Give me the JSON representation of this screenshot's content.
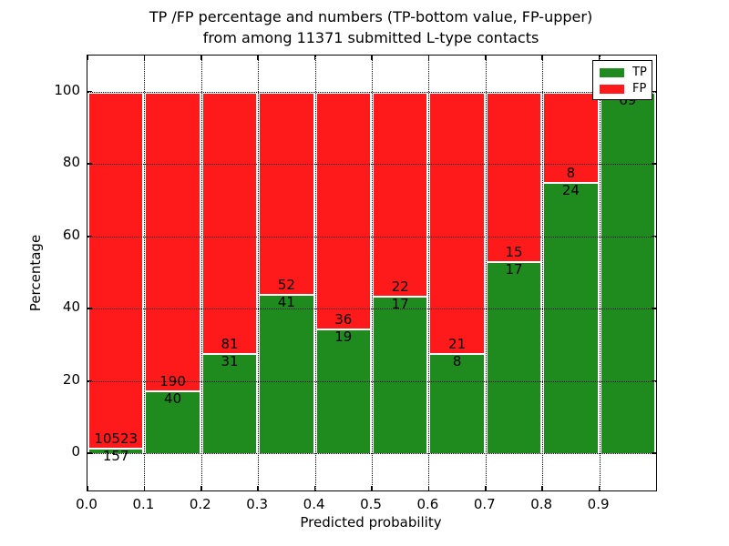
{
  "title": {
    "line1": "TP /FP percentage and numbers (TP-bottom value, FP-upper)",
    "line2": "from among 11371 submitted L-type contacts"
  },
  "axes": {
    "xlabel": "Predicted probability",
    "ylabel": "Percentage",
    "x_ticks": [
      "0.0",
      "0.1",
      "0.2",
      "0.3",
      "0.4",
      "0.5",
      "0.6",
      "0.7",
      "0.8",
      "0.9"
    ],
    "y_ticks": [
      "0",
      "20",
      "40",
      "60",
      "80",
      "100"
    ]
  },
  "legend": {
    "items": [
      {
        "label": "TP",
        "color": "#1f8b1f"
      },
      {
        "label": "FP",
        "color": "#fe1a1a"
      }
    ]
  },
  "colors": {
    "tp": "#1f8b1f",
    "fp": "#fe1a1a",
    "bar_edge": "#ffffff",
    "grid": "#000000",
    "background": "#ffffff"
  },
  "total_submitted": "11371",
  "chart_data": {
    "type": "bar",
    "stacked": true,
    "normalized_to_percent": true,
    "title": "TP /FP percentage and numbers (TP-bottom value, FP-upper) from among 11371 submitted L-type contacts",
    "xlabel": "Predicted probability",
    "ylabel": "Percentage",
    "categories": [
      "0.0-0.1",
      "0.1-0.2",
      "0.2-0.3",
      "0.3-0.4",
      "0.4-0.5",
      "0.5-0.6",
      "0.6-0.7",
      "0.7-0.8",
      "0.8-0.9",
      "0.9-1.0"
    ],
    "series": [
      {
        "name": "TP",
        "color": "#1f8b1f",
        "counts": [
          157,
          40,
          31,
          41,
          19,
          17,
          8,
          17,
          24,
          69
        ],
        "percent": [
          1.47,
          17.39,
          27.68,
          44.09,
          34.55,
          43.59,
          27.59,
          53.13,
          75.0,
          100.0
        ]
      },
      {
        "name": "FP",
        "color": "#fe1a1a",
        "counts": [
          10523,
          190,
          81,
          52,
          36,
          22,
          21,
          15,
          8,
          0
        ],
        "percent": [
          98.53,
          82.61,
          72.32,
          55.91,
          65.45,
          56.41,
          72.41,
          46.87,
          25.0,
          0.0
        ]
      }
    ],
    "xlim": [
      0.0,
      1.0
    ],
    "ylim": [
      -10.5,
      110
    ],
    "grid": "dotted",
    "legend_position": "upper right"
  }
}
